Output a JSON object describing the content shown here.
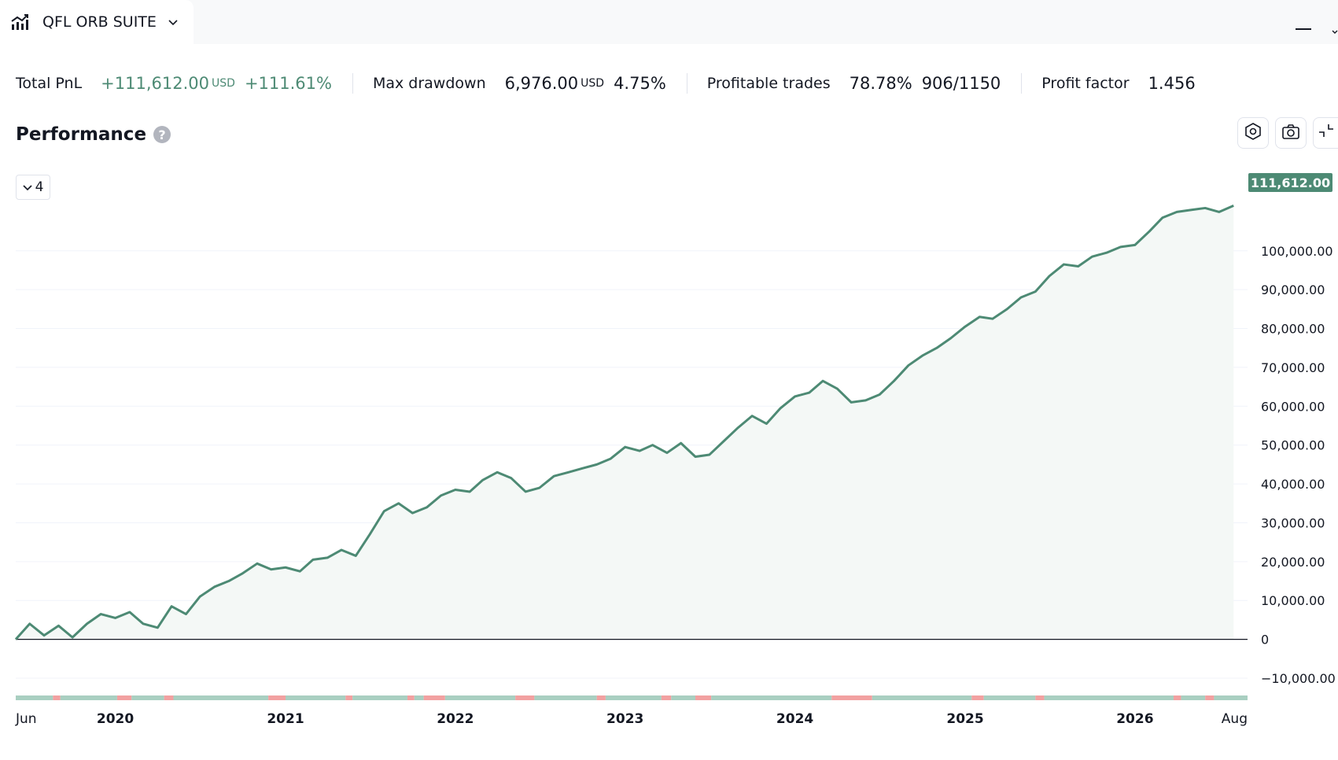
{
  "tab": {
    "title": "QFL ORB SUITE",
    "icon": "chart-bars-icon"
  },
  "stats": {
    "total_pnl": {
      "label": "Total PnL",
      "value": "+111,612.00",
      "unit": "USD",
      "percent": "+111.61%"
    },
    "max_drawdown": {
      "label": "Max drawdown",
      "value": "6,976.00",
      "unit": "USD",
      "percent": "4.75%"
    },
    "profitable_trades": {
      "label": "Profitable trades",
      "percent": "78.78%",
      "ratio": "906/1150"
    },
    "profit_factor": {
      "label": "Profit factor",
      "value": "1.456"
    }
  },
  "panel": {
    "title": "Performance",
    "help": "?",
    "series_toggle": "4"
  },
  "colors": {
    "line": "#4d8a74",
    "fill": "#f4f8f6",
    "grid": "#f0f3fa",
    "zero": "#131722",
    "win": "#a9cfc1",
    "loss": "#f2a1a1"
  },
  "chart_data": {
    "type": "area",
    "title": "",
    "ylim": [
      -10000,
      120000
    ],
    "yticks": [
      {
        "value": 100000,
        "label": "100,000.00"
      },
      {
        "value": 90000,
        "label": "90,000.00"
      },
      {
        "value": 80000,
        "label": "80,000.00"
      },
      {
        "value": 70000,
        "label": "70,000.00"
      },
      {
        "value": 60000,
        "label": "60,000.00"
      },
      {
        "value": 50000,
        "label": "50,000.00"
      },
      {
        "value": 40000,
        "label": "40,000.00"
      },
      {
        "value": 30000,
        "label": "30,000.00"
      },
      {
        "value": 20000,
        "label": "20,000.00"
      },
      {
        "value": 10000,
        "label": "10,000.00"
      },
      {
        "value": 0,
        "label": "0"
      },
      {
        "value": -10000,
        "label": "−10,000.00"
      }
    ],
    "xlim": [
      "2019-06-01",
      "2026-08-31"
    ],
    "xticks": [
      {
        "date": "2019-06-01",
        "label": "Jun"
      },
      {
        "date": "2020-01-01",
        "label": "2020"
      },
      {
        "date": "2021-01-01",
        "label": "2021"
      },
      {
        "date": "2022-01-01",
        "label": "2022"
      },
      {
        "date": "2023-01-01",
        "label": "2023"
      },
      {
        "date": "2024-01-01",
        "label": "2024"
      },
      {
        "date": "2025-01-01",
        "label": "2025"
      },
      {
        "date": "2026-01-01",
        "label": "2026"
      },
      {
        "date": "2026-08-31",
        "label": "Aug"
      }
    ],
    "last_value_label": "111,612.00",
    "series": [
      {
        "values": [
          [
            "2019-06-01",
            0
          ],
          [
            "2019-07-01",
            4000
          ],
          [
            "2019-08-01",
            1000
          ],
          [
            "2019-09-01",
            3500
          ],
          [
            "2019-10-01",
            500
          ],
          [
            "2019-11-01",
            4000
          ],
          [
            "2019-12-01",
            6500
          ],
          [
            "2020-01-01",
            5500
          ],
          [
            "2020-02-01",
            7000
          ],
          [
            "2020-03-01",
            4000
          ],
          [
            "2020-04-01",
            3000
          ],
          [
            "2020-05-01",
            8500
          ],
          [
            "2020-06-01",
            6500
          ],
          [
            "2020-07-01",
            11000
          ],
          [
            "2020-08-01",
            13500
          ],
          [
            "2020-09-01",
            15000
          ],
          [
            "2020-10-01",
            17000
          ],
          [
            "2020-11-01",
            19500
          ],
          [
            "2020-12-01",
            18000
          ],
          [
            "2021-01-01",
            18500
          ],
          [
            "2021-02-01",
            17500
          ],
          [
            "2021-03-01",
            20500
          ],
          [
            "2021-04-01",
            21000
          ],
          [
            "2021-05-01",
            23000
          ],
          [
            "2021-06-01",
            21500
          ],
          [
            "2021-07-01",
            27000
          ],
          [
            "2021-08-01",
            33000
          ],
          [
            "2021-09-01",
            35000
          ],
          [
            "2021-10-01",
            32500
          ],
          [
            "2021-11-01",
            34000
          ],
          [
            "2021-12-01",
            37000
          ],
          [
            "2022-01-01",
            38500
          ],
          [
            "2022-02-01",
            38000
          ],
          [
            "2022-03-01",
            41000
          ],
          [
            "2022-04-01",
            43000
          ],
          [
            "2022-05-01",
            41500
          ],
          [
            "2022-06-01",
            38000
          ],
          [
            "2022-07-01",
            39000
          ],
          [
            "2022-08-01",
            42000
          ],
          [
            "2022-09-01",
            43000
          ],
          [
            "2022-10-01",
            44000
          ],
          [
            "2022-11-01",
            45000
          ],
          [
            "2022-12-01",
            46500
          ],
          [
            "2023-01-01",
            49500
          ],
          [
            "2023-02-01",
            48500
          ],
          [
            "2023-03-01",
            50000
          ],
          [
            "2023-04-01",
            48000
          ],
          [
            "2023-05-01",
            50500
          ],
          [
            "2023-06-01",
            47000
          ],
          [
            "2023-07-01",
            47500
          ],
          [
            "2023-08-01",
            51000
          ],
          [
            "2023-09-01",
            54500
          ],
          [
            "2023-10-01",
            57500
          ],
          [
            "2023-11-01",
            55500
          ],
          [
            "2023-12-01",
            59500
          ],
          [
            "2024-01-01",
            62500
          ],
          [
            "2024-02-01",
            63500
          ],
          [
            "2024-03-01",
            66500
          ],
          [
            "2024-04-01",
            64500
          ],
          [
            "2024-05-01",
            61000
          ],
          [
            "2024-06-01",
            61500
          ],
          [
            "2024-07-01",
            63000
          ],
          [
            "2024-08-01",
            66500
          ],
          [
            "2024-09-01",
            70500
          ],
          [
            "2024-10-01",
            73000
          ],
          [
            "2024-11-01",
            75000
          ],
          [
            "2024-12-01",
            77500
          ],
          [
            "2025-01-01",
            80500
          ],
          [
            "2025-02-01",
            83000
          ],
          [
            "2025-03-01",
            82500
          ],
          [
            "2025-04-01",
            85000
          ],
          [
            "2025-05-01",
            88000
          ],
          [
            "2025-06-01",
            89500
          ],
          [
            "2025-07-01",
            93500
          ],
          [
            "2025-08-01",
            96500
          ],
          [
            "2025-09-01",
            96000
          ],
          [
            "2025-10-01",
            98500
          ],
          [
            "2025-11-01",
            99500
          ],
          [
            "2025-12-01",
            101000
          ],
          [
            "2026-01-01",
            101500
          ],
          [
            "2026-02-01",
            105000
          ],
          [
            "2026-03-01",
            108500
          ],
          [
            "2026-04-01",
            110000
          ],
          [
            "2026-05-01",
            110500
          ],
          [
            "2026-06-01",
            111000
          ],
          [
            "2026-07-01",
            110000
          ],
          [
            "2026-08-01",
            111612
          ]
        ]
      }
    ],
    "trade_strip": [
      [
        "2019-06-01",
        "2019-08-20",
        "win"
      ],
      [
        "2019-08-20",
        "2019-09-05",
        "loss"
      ],
      [
        "2019-09-05",
        "2020-01-05",
        "win"
      ],
      [
        "2020-01-05",
        "2020-02-05",
        "loss"
      ],
      [
        "2020-02-05",
        "2020-04-15",
        "win"
      ],
      [
        "2020-04-15",
        "2020-05-05",
        "loss"
      ],
      [
        "2020-05-05",
        "2020-11-25",
        "win"
      ],
      [
        "2020-11-25",
        "2021-01-01",
        "loss"
      ],
      [
        "2021-01-01",
        "2021-05-10",
        "win"
      ],
      [
        "2021-05-10",
        "2021-05-25",
        "loss"
      ],
      [
        "2021-05-25",
        "2021-09-20",
        "win"
      ],
      [
        "2021-09-20",
        "2021-10-05",
        "loss"
      ],
      [
        "2021-10-05",
        "2021-10-25",
        "win"
      ],
      [
        "2021-10-25",
        "2021-12-10",
        "loss"
      ],
      [
        "2021-12-10",
        "2022-05-10",
        "win"
      ],
      [
        "2022-05-10",
        "2022-06-20",
        "loss"
      ],
      [
        "2022-06-20",
        "2022-11-01",
        "win"
      ],
      [
        "2022-11-01",
        "2022-11-20",
        "loss"
      ],
      [
        "2022-11-20",
        "2023-03-20",
        "win"
      ],
      [
        "2023-03-20",
        "2023-04-10",
        "loss"
      ],
      [
        "2023-04-10",
        "2023-06-01",
        "win"
      ],
      [
        "2023-06-01",
        "2023-07-05",
        "loss"
      ],
      [
        "2023-07-05",
        "2024-03-20",
        "win"
      ],
      [
        "2024-03-20",
        "2024-06-15",
        "loss"
      ],
      [
        "2024-06-15",
        "2025-01-15",
        "win"
      ],
      [
        "2025-01-15",
        "2025-02-10",
        "loss"
      ],
      [
        "2025-02-10",
        "2025-06-01",
        "win"
      ],
      [
        "2025-06-01",
        "2025-06-20",
        "loss"
      ],
      [
        "2025-06-20",
        "2026-03-25",
        "win"
      ],
      [
        "2026-03-25",
        "2026-04-10",
        "loss"
      ],
      [
        "2026-04-10",
        "2026-06-01",
        "win"
      ],
      [
        "2026-06-01",
        "2026-06-20",
        "loss"
      ],
      [
        "2026-06-20",
        "2026-08-31",
        "win"
      ]
    ]
  }
}
